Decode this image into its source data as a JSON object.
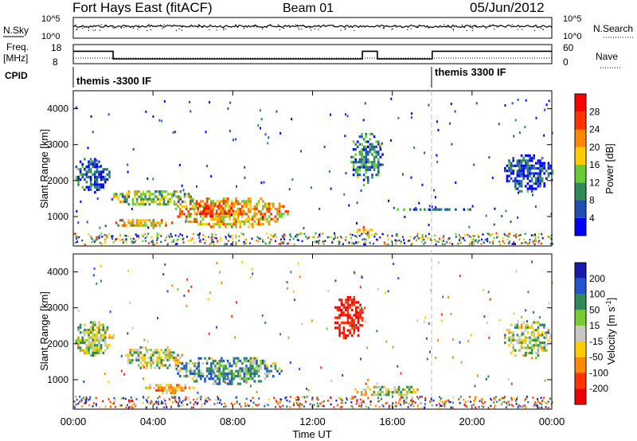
{
  "header": {
    "station": "Fort Hays East (fitACF)",
    "beam": "Beam 01",
    "date": "05/Jun/2012"
  },
  "noise_panel": {
    "left_label": "N.Sky",
    "right_label": "N.Search",
    "left_ticks": [
      "10^5",
      "10^0"
    ],
    "right_ticks": [
      "10^5",
      "10^0"
    ]
  },
  "freq_panel": {
    "left_label_1": "Freq.",
    "left_label_2": "[MHz]",
    "right_label": "Nave",
    "left_ticks": [
      "18",
      "8"
    ],
    "right_ticks": [
      "60",
      "0"
    ],
    "freq_steps": [
      {
        "from": "00:00",
        "to": "02:00",
        "value": 14.5
      },
      {
        "from": "02:00",
        "to": "14:30",
        "value": 10.5
      },
      {
        "from": "14:30",
        "to": "15:15",
        "value": 14.5
      },
      {
        "from": "15:15",
        "to": "18:00",
        "value": 10.5
      },
      {
        "from": "18:00",
        "to": "24:00",
        "value": 14.5
      }
    ]
  },
  "cpid": {
    "label": "CPID",
    "segments": [
      {
        "start": "00:00",
        "text": "themis -3300 IF"
      },
      {
        "start": "18:00",
        "text": "themis 3300 IF"
      }
    ]
  },
  "power_panel": {
    "ylabel": "Slant Range [km]",
    "yticks": [
      "1000",
      "2000",
      "3000",
      "4000"
    ],
    "colorbar_label": "Power [dB]",
    "colorbar_ticks": [
      "4",
      "8",
      "12",
      "16",
      "20",
      "24",
      "28"
    ],
    "colors": [
      "#0000ff",
      "#1f4fb0",
      "#2e8b57",
      "#66cc33",
      "#ffcc00",
      "#ff8800",
      "#ff3300",
      "#ff0000"
    ]
  },
  "velocity_panel": {
    "ylabel": "Slant Range [km]",
    "yticks": [
      "1000",
      "2000",
      "3000",
      "4000"
    ],
    "colorbar_label_main": "Velocity [m s",
    "colorbar_label_sup": "-1",
    "colorbar_label_end": "]",
    "colorbar_ticks": [
      "200",
      "100",
      "50",
      "15",
      "-15",
      "-50",
      "-100",
      "-200"
    ],
    "colors": [
      "#1a1aaa",
      "#2255cc",
      "#2e8b57",
      "#77cc33",
      "#c8c8c0",
      "#ffcc00",
      "#ff8800",
      "#ff3300",
      "#ee0000"
    ]
  },
  "x_axis": {
    "label": "Time UT",
    "ticks": [
      "00:00",
      "04:00",
      "08:00",
      "12:00",
      "16:00",
      "20:00",
      "00:00"
    ]
  },
  "chart_data": {
    "type": "heatmap",
    "title": "Fort Hays East (fitACF)",
    "subtitle": "Beam 01",
    "xlabel": "Time UT",
    "ylabel": "Slant Range [km]",
    "xlim_hours": [
      0,
      24
    ],
    "ylim_km": [
      180,
      4500
    ],
    "power_range_db": [
      0,
      30
    ],
    "velocity_range_ms": [
      -250,
      250
    ],
    "power_blobs": [
      {
        "t": [
          0.0,
          1.8
        ],
        "r": [
          1700,
          2700
        ],
        "db": 6
      },
      {
        "t": [
          1.8,
          6.0
        ],
        "r": [
          1300,
          1800
        ],
        "db": 14
      },
      {
        "t": [
          5.0,
          10.8
        ],
        "r": [
          700,
          1600
        ],
        "db": 20
      },
      {
        "t": [
          6.0,
          8.0
        ],
        "r": [
          1000,
          1400
        ],
        "db": 26
      },
      {
        "t": [
          2.0,
          5.0
        ],
        "r": [
          700,
          1000
        ],
        "db": 18
      },
      {
        "t": [
          13.8,
          15.5
        ],
        "r": [
          1900,
          3400
        ],
        "db": 8
      },
      {
        "t": [
          14.0,
          15.0
        ],
        "r": [
          500,
          800
        ],
        "db": 22
      },
      {
        "t": [
          15.5,
          20.5
        ],
        "r": [
          1200,
          1300
        ],
        "db": 6
      },
      {
        "t": [
          21.5,
          24.0
        ],
        "r": [
          1700,
          2800
        ],
        "db": 5
      }
    ],
    "velocity_blobs": [
      {
        "t": [
          0.0,
          2.0
        ],
        "r": [
          1700,
          2700
        ],
        "v": 0
      },
      {
        "t": [
          2.5,
          5.5
        ],
        "r": [
          1300,
          2000
        ],
        "v": 0
      },
      {
        "t": [
          5.0,
          10.5
        ],
        "r": [
          900,
          1700
        ],
        "v": 50
      },
      {
        "t": [
          3.5,
          6.0
        ],
        "r": [
          650,
          950
        ],
        "v": -50
      },
      {
        "t": [
          13.0,
          14.5
        ],
        "r": [
          2100,
          3400
        ],
        "v": -200
      },
      {
        "t": [
          14.0,
          17.5
        ],
        "r": [
          550,
          900
        ],
        "v": 0
      },
      {
        "t": [
          21.5,
          24.0
        ],
        "r": [
          1600,
          2700
        ],
        "v": 0
      }
    ]
  }
}
